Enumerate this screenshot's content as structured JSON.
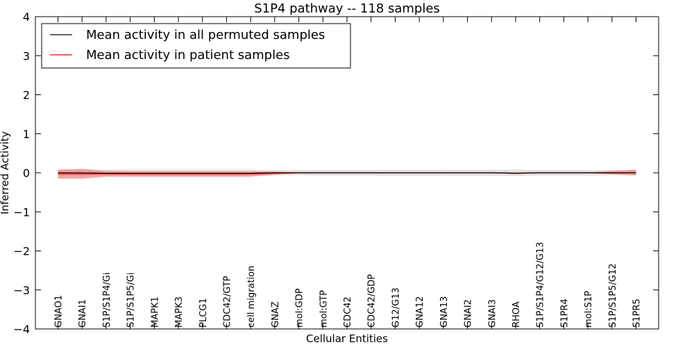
{
  "chart_data": {
    "type": "line",
    "title": "S1P4 pathway -- 118 samples",
    "xlabel": "Cellular Entities",
    "ylabel": "Inferred Activity",
    "ylim": [
      -4,
      4
    ],
    "yticks": [
      4,
      3,
      2,
      1,
      0,
      -1,
      -2,
      -3,
      -4
    ],
    "ytick_labels": [
      "4",
      "3",
      "2",
      "1",
      "0",
      "−1",
      "−2",
      "−3",
      "−4"
    ],
    "legend_position": "upper-left",
    "categories": [
      "GNAO1",
      "GNAI1",
      "S1P/S1P4/Gi",
      "S1P/S1P5/Gi",
      "MAPK1",
      "MAPK3",
      "PLCG1",
      "CDC42/GTP",
      "cell migration",
      "GNAZ",
      "mol:GDP",
      "mol:GTP",
      "CDC42",
      "CDC42/GDP",
      "G12/G13",
      "GNA12",
      "GNA13",
      "GNAI2",
      "GNAI3",
      "RHOA",
      "S1P/S1P4/G12/G13",
      "S1PR4",
      "mol:S1P",
      "S1P/S1P5/G12",
      "S1PR5"
    ],
    "series": [
      {
        "name": "Mean activity in all permuted samples",
        "color": "#000000",
        "values": [
          0.0,
          0.0,
          -0.01,
          -0.01,
          -0.01,
          -0.01,
          -0.01,
          -0.01,
          -0.01,
          0.0,
          0.0,
          0.0,
          0.0,
          0.0,
          0.0,
          0.0,
          0.0,
          0.0,
          0.0,
          -0.01,
          0.0,
          0.0,
          0.0,
          0.0,
          0.0
        ],
        "band_low": [
          -0.08,
          -0.08,
          -0.07,
          -0.07,
          -0.07,
          -0.07,
          -0.07,
          -0.07,
          -0.07,
          -0.07,
          -0.06,
          -0.07,
          -0.07,
          -0.07,
          -0.08,
          -0.08,
          -0.07,
          -0.08,
          -0.08,
          -0.08,
          -0.07,
          -0.07,
          -0.07,
          -0.06,
          -0.06
        ],
        "band_high": [
          0.08,
          0.1,
          0.07,
          0.07,
          0.07,
          0.07,
          0.07,
          0.07,
          0.07,
          0.07,
          0.07,
          0.07,
          0.07,
          0.07,
          0.08,
          0.08,
          0.08,
          0.08,
          0.08,
          0.08,
          0.07,
          0.07,
          0.07,
          0.07,
          0.07
        ],
        "band_color": "#bbbbbb"
      },
      {
        "name": "Mean activity in patient samples",
        "color": "#ff0000",
        "values": [
          -0.03,
          -0.03,
          -0.03,
          -0.03,
          -0.03,
          -0.03,
          -0.03,
          -0.03,
          -0.03,
          -0.01,
          0.0,
          0.0,
          0.0,
          0.0,
          0.0,
          0.0,
          0.0,
          0.0,
          0.0,
          -0.01,
          0.0,
          0.0,
          0.0,
          0.0,
          0.0
        ],
        "band_low": [
          -0.15,
          -0.15,
          -0.1,
          -0.1,
          -0.1,
          -0.1,
          -0.1,
          -0.1,
          -0.1,
          -0.05,
          -0.01,
          -0.01,
          -0.01,
          -0.01,
          -0.01,
          -0.01,
          -0.01,
          -0.01,
          -0.01,
          -0.03,
          -0.01,
          -0.01,
          -0.01,
          -0.04,
          -0.07
        ],
        "band_high": [
          0.08,
          0.1,
          0.05,
          0.04,
          0.04,
          0.04,
          0.04,
          0.04,
          0.04,
          0.03,
          0.01,
          0.01,
          0.01,
          0.01,
          0.01,
          0.01,
          0.01,
          0.01,
          0.01,
          0.01,
          0.01,
          0.01,
          0.01,
          0.05,
          0.08
        ],
        "band_color": "#f08080"
      }
    ]
  }
}
